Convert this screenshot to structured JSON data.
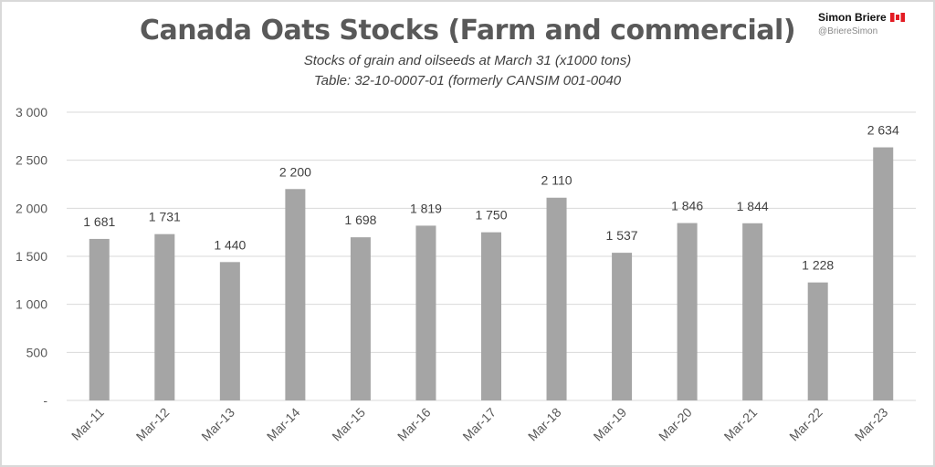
{
  "chart_data": {
    "type": "bar",
    "title": "Canada Oats Stocks (Farm and commercial)",
    "subtitle_lines": [
      "Stocks of grain and oilseeds at March 31 (x1000 tons)",
      "Table: 32-10-0007-01 (formerly CANSIM 001-0040"
    ],
    "categories": [
      "Mar-11",
      "Mar-12",
      "Mar-13",
      "Mar-14",
      "Mar-15",
      "Mar-16",
      "Mar-17",
      "Mar-18",
      "Mar-19",
      "Mar-20",
      "Mar-21",
      "Mar-22",
      "Mar-23"
    ],
    "values": [
      1681,
      1731,
      1440,
      2200,
      1698,
      1819,
      1750,
      2110,
      1537,
      1846,
      1844,
      1228,
      2634
    ],
    "data_labels": [
      "1 681",
      "1 731",
      "1 440",
      "2 200",
      "1 698",
      "1 819",
      "1 750",
      "2 110",
      "1 537",
      "1 846",
      "1 844",
      "1 228",
      "2 634"
    ],
    "ylim": [
      0,
      3000
    ],
    "yticks": [
      0,
      500,
      1000,
      1500,
      2000,
      2500,
      3000
    ],
    "ytick_labels": [
      "-",
      "500",
      "1 000",
      "1 500",
      "2 000",
      "2 500",
      "3 000"
    ],
    "grid": true,
    "bar_color": "#a5a5a5",
    "xlabel": "",
    "ylabel": ""
  },
  "branding": {
    "name": "Simon Briere",
    "handle": "@BriereSimon",
    "flag_icon": "canada-flag-icon"
  }
}
